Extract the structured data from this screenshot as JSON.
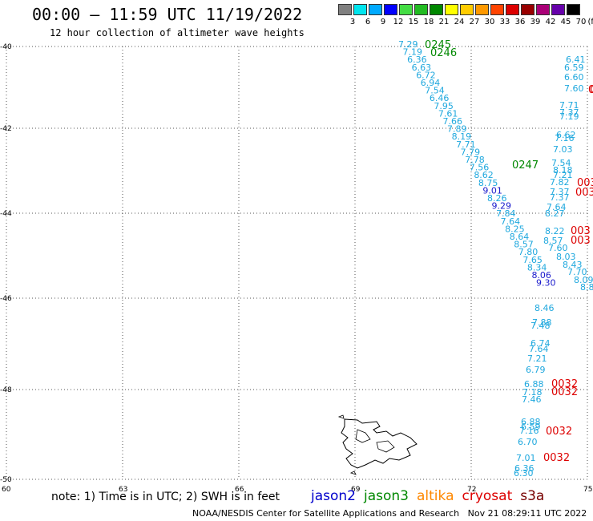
{
  "title": "00:00 – 11:59 UTC 11/19/2022",
  "subtitle": "12 hour collection of altimeter wave heights",
  "scale": {
    "labels": [
      "3",
      "6",
      "9",
      "12",
      "15",
      "18",
      "21",
      "24",
      "27",
      "30",
      "33",
      "36",
      "39",
      "42",
      "45",
      "70",
      "(ft)"
    ],
    "colors": [
      "#808080",
      "#00e5ee",
      "#00aaff",
      "#0000ff",
      "#44dd44",
      "#22bb22",
      "#008800",
      "#ffff00",
      "#ffcc00",
      "#ff9900",
      "#ff4400",
      "#dd0000",
      "#990000",
      "#aa0077",
      "#6600aa",
      "#000000"
    ]
  },
  "axes": {
    "lat_labels": [
      "-40",
      "-42",
      "-44",
      "-46",
      "-48",
      "-50"
    ],
    "lon_labels": [
      "60",
      "63",
      "66",
      "69",
      "72",
      "75"
    ]
  },
  "note": "note: 1) Time is in UTC; 2) SWH is in feet",
  "legend": [
    {
      "name": "jason2",
      "color": "#0000cc"
    },
    {
      "name": "jason3",
      "color": "#008800"
    },
    {
      "name": "altika",
      "color": "#ff8800"
    },
    {
      "name": "cryosat",
      "color": "#dd0000"
    },
    {
      "name": "s3a",
      "color": "#770000"
    }
  ],
  "footer": "NOAA/NESDIS Center for Satellite Applications and Research   Nov 21 08:29:11 UTC 2022",
  "track1": [
    "7.29",
    "7.19",
    "6.36",
    "6.63",
    "6.72",
    "6.94",
    "7.54",
    "6.46",
    "7.95",
    "7.61",
    "7.66",
    "7.89",
    "8.19",
    "7.71",
    "7.79",
    "7.78",
    "7.56",
    "8.62",
    "8.75",
    "9.01",
    "8.26",
    "9.29",
    "7.84",
    "7.64",
    "8.25",
    "8.64",
    "8.57",
    "7.80",
    "7.65",
    "8.34",
    "8.06",
    "9.30"
  ],
  "track1_colors": [
    "c",
    "c",
    "c",
    "c",
    "c",
    "c",
    "c",
    "c",
    "c",
    "c",
    "c",
    "c",
    "c",
    "c",
    "c",
    "c",
    "c",
    "c",
    "c",
    "b",
    "c",
    "b",
    "c",
    "c",
    "c",
    "c",
    "c",
    "c",
    "c",
    "c",
    "b",
    "b"
  ],
  "track2": [
    "6.41",
    "6.59",
    "6.60",
    "7.60",
    "7.71",
    "7.37",
    "7.19",
    "6.62",
    "7.16",
    "7.03",
    "7.54",
    "8.18",
    "7.21",
    "7.82",
    "7.37",
    "7.37",
    "7.64",
    "8.27",
    "8.22",
    "8.57",
    "7.60",
    "8.03",
    "8.43",
    "7.70",
    "8.09",
    "8.8"
  ],
  "track3": [
    "8.46",
    "7.88",
    "7.48",
    "6.74",
    "7.64",
    "7.21",
    "6.79",
    "6.88",
    "7.18",
    "7.46",
    "6.88",
    "6.59",
    "7.16",
    "6.70",
    "7.01",
    "6.36",
    "6.30"
  ],
  "time_tags": [
    {
      "text": "0245",
      "color": "#008800"
    },
    {
      "text": "0246",
      "color": "#008800"
    },
    {
      "text": "0247",
      "color": "#008800"
    },
    {
      "text": "0032",
      "color": "#dd0000"
    },
    {
      "text": "0032",
      "color": "#dd0000"
    },
    {
      "text": "0032",
      "color": "#dd0000"
    },
    {
      "text": "0032",
      "color": "#dd0000"
    },
    {
      "text": "0032",
      "color": "#dd0000"
    },
    {
      "text": "0032",
      "color": "#dd0000"
    },
    {
      "text": "003",
      "color": "#dd0000"
    },
    {
      "text": "003",
      "color": "#dd0000"
    },
    {
      "text": "003",
      "color": "#dd0000"
    },
    {
      "text": "003",
      "color": "#dd0000"
    }
  ]
}
